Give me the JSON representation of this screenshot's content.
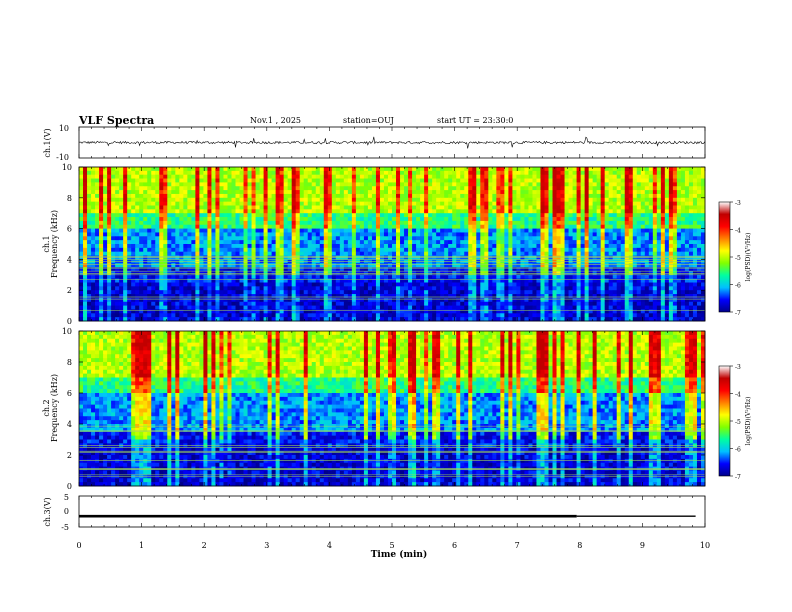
{
  "header": {
    "title": "VLF Spectra",
    "date": "Nov.1 , 2025",
    "station": "station=OUJ",
    "start_ut": "start UT = 23:30:0"
  },
  "colormap_stops": [
    "#00008a",
    "#0000ff",
    "#00c0ff",
    "#00ffa0",
    "#80ff00",
    "#ffff00",
    "#ff8000",
    "#ff0000",
    "#c00000",
    "#ffffff"
  ],
  "chart_data": [
    {
      "type": "line",
      "panel": "ch1-waveform",
      "ylabel": "ch.1(V)",
      "ylim": [
        -10,
        10
      ],
      "yticks": [
        "10",
        "-10"
      ],
      "baseline": 0,
      "xlim": [
        0,
        10
      ]
    },
    {
      "type": "heatmap",
      "panel": "ch1-spectrogram",
      "ylabel": "ch.1",
      "ylabel2": "Frequency (kHz)",
      "ylim": [
        0,
        10
      ],
      "yticks": [
        "0",
        "2",
        "4",
        "6",
        "8",
        "10"
      ],
      "xlim": [
        0,
        10
      ],
      "colorbar": {
        "label": "log(PSD)(V²/Hz)",
        "range": [
          -7,
          -3
        ],
        "ticks": [
          "-3",
          "-4",
          "-5",
          "-6",
          "-7"
        ]
      }
    },
    {
      "type": "heatmap",
      "panel": "ch2-spectrogram",
      "ylabel": "ch.2",
      "ylabel2": "Frequency (kHz)",
      "ylim": [
        0,
        10
      ],
      "yticks": [
        "0",
        "2",
        "4",
        "6",
        "8",
        "10"
      ],
      "xlim": [
        0,
        10
      ],
      "colorbar": {
        "label": "log(PSD)(V²/Hz)",
        "range": [
          -7,
          -3
        ],
        "ticks": [
          "-3",
          "-4",
          "-5",
          "-6",
          "-7"
        ]
      }
    },
    {
      "type": "line",
      "panel": "ch3-waveform",
      "ylabel": "ch.3(V)",
      "ylim": [
        -5,
        5
      ],
      "yticks": [
        "5",
        "0",
        "-5"
      ],
      "series": [
        {
          "x": [
            0,
            7.95,
            9.85
          ],
          "y": [
            -1.5,
            -1.5,
            -1.5
          ]
        }
      ],
      "xlabel": "Time (min)",
      "xlim": [
        0,
        10
      ],
      "xticks": [
        "0",
        "1",
        "2",
        "3",
        "4",
        "5",
        "6",
        "7",
        "8",
        "9",
        "10"
      ]
    }
  ]
}
